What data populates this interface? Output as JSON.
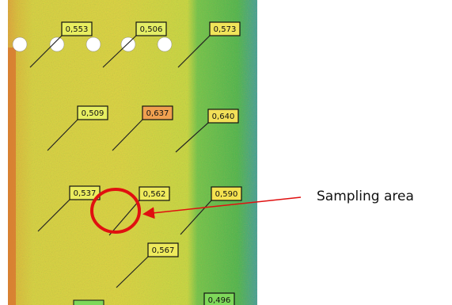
{
  "measurements": [
    {
      "label": "0,553"
    },
    {
      "label": "0,506"
    },
    {
      "label": "0,573"
    },
    {
      "label": "0,509"
    },
    {
      "label": "0,637"
    },
    {
      "label": "0,640"
    },
    {
      "label": "0,537"
    },
    {
      "label": "0,562"
    },
    {
      "label": "0,590"
    },
    {
      "label": "0,567"
    },
    {
      "label": "0,496"
    }
  ],
  "annotation": "Sampling area"
}
